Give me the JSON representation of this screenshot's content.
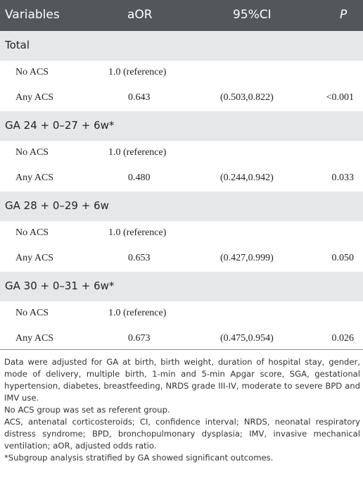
{
  "header": {
    "variables": "Variables",
    "aor": "aOR",
    "ci": "95%CI",
    "p": "P"
  },
  "groups": [
    {
      "label": "Total",
      "rows": [
        {
          "label": "No ACS",
          "aor": "1.0 (reference)",
          "ci": "",
          "p": ""
        },
        {
          "label": "Any ACS",
          "aor": "0.643",
          "ci": "(0.503,0.822)",
          "p": "<0.001"
        }
      ]
    },
    {
      "label": "GA 24 + 0–27 + 6w*",
      "rows": [
        {
          "label": "No ACS",
          "aor": "1.0 (reference)",
          "ci": "",
          "p": ""
        },
        {
          "label": "Any ACS",
          "aor": "0.480",
          "ci": "(0.244,0.942)",
          "p": "0.033"
        }
      ]
    },
    {
      "label": "GA 28 + 0–29 + 6w",
      "rows": [
        {
          "label": "No ACS",
          "aor": "1.0 (reference)",
          "ci": "",
          "p": ""
        },
        {
          "label": "Any ACS",
          "aor": "0.653",
          "ci": "(0.427,0.999)",
          "p": "0.050"
        }
      ]
    },
    {
      "label": "GA 30 + 0–31 + 6w*",
      "rows": [
        {
          "label": "No ACS",
          "aor": "1.0 (reference)",
          "ci": "",
          "p": ""
        },
        {
          "label": "Any ACS",
          "aor": "0.673",
          "ci": "(0.475,0.954)",
          "p": "0.026"
        }
      ]
    }
  ],
  "notes": {
    "adjusted": "Data were adjusted for GA at birth, birth weight, duration of hospital stay, gender, mode of delivery, multiple birth, 1-min and 5-min Apgar score, SGA, gestational hypertension, diabetes, breastfeeding, NRDS grade III-IV, moderate to severe BPD and IMV use.",
    "referent": "No ACS group was set as referent group.",
    "abbreviations": "ACS, antenatal corticosteroids; CI, confidence interval; NRDS, neonatal respiratory distress syndrome; BPD, bronchopulmonary dysplasia; IMV, invasive mechanical ventilation; aOR, adjusted odds ratio.",
    "subgroup": "*Subgroup analysis stratified by GA showed significant outcomes."
  }
}
